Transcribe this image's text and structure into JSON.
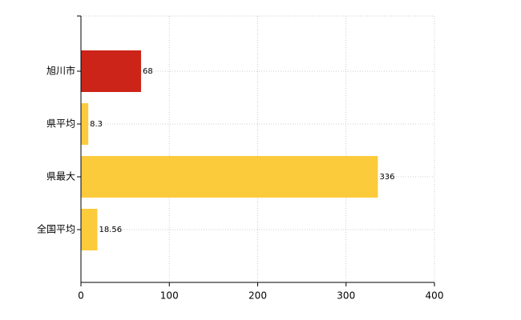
{
  "chart_data": {
    "type": "hbar",
    "categories": [
      "旭川市",
      "県平均",
      "県最大",
      "全国平均"
    ],
    "values": [
      68,
      8.3,
      336,
      18.56
    ],
    "colors": [
      "#cc2418",
      "#fccb3c",
      "#fccb3c",
      "#fccb3c"
    ],
    "xlim": [
      0,
      400
    ],
    "xticks": [
      0,
      100,
      200,
      300,
      400
    ],
    "grid": true
  }
}
